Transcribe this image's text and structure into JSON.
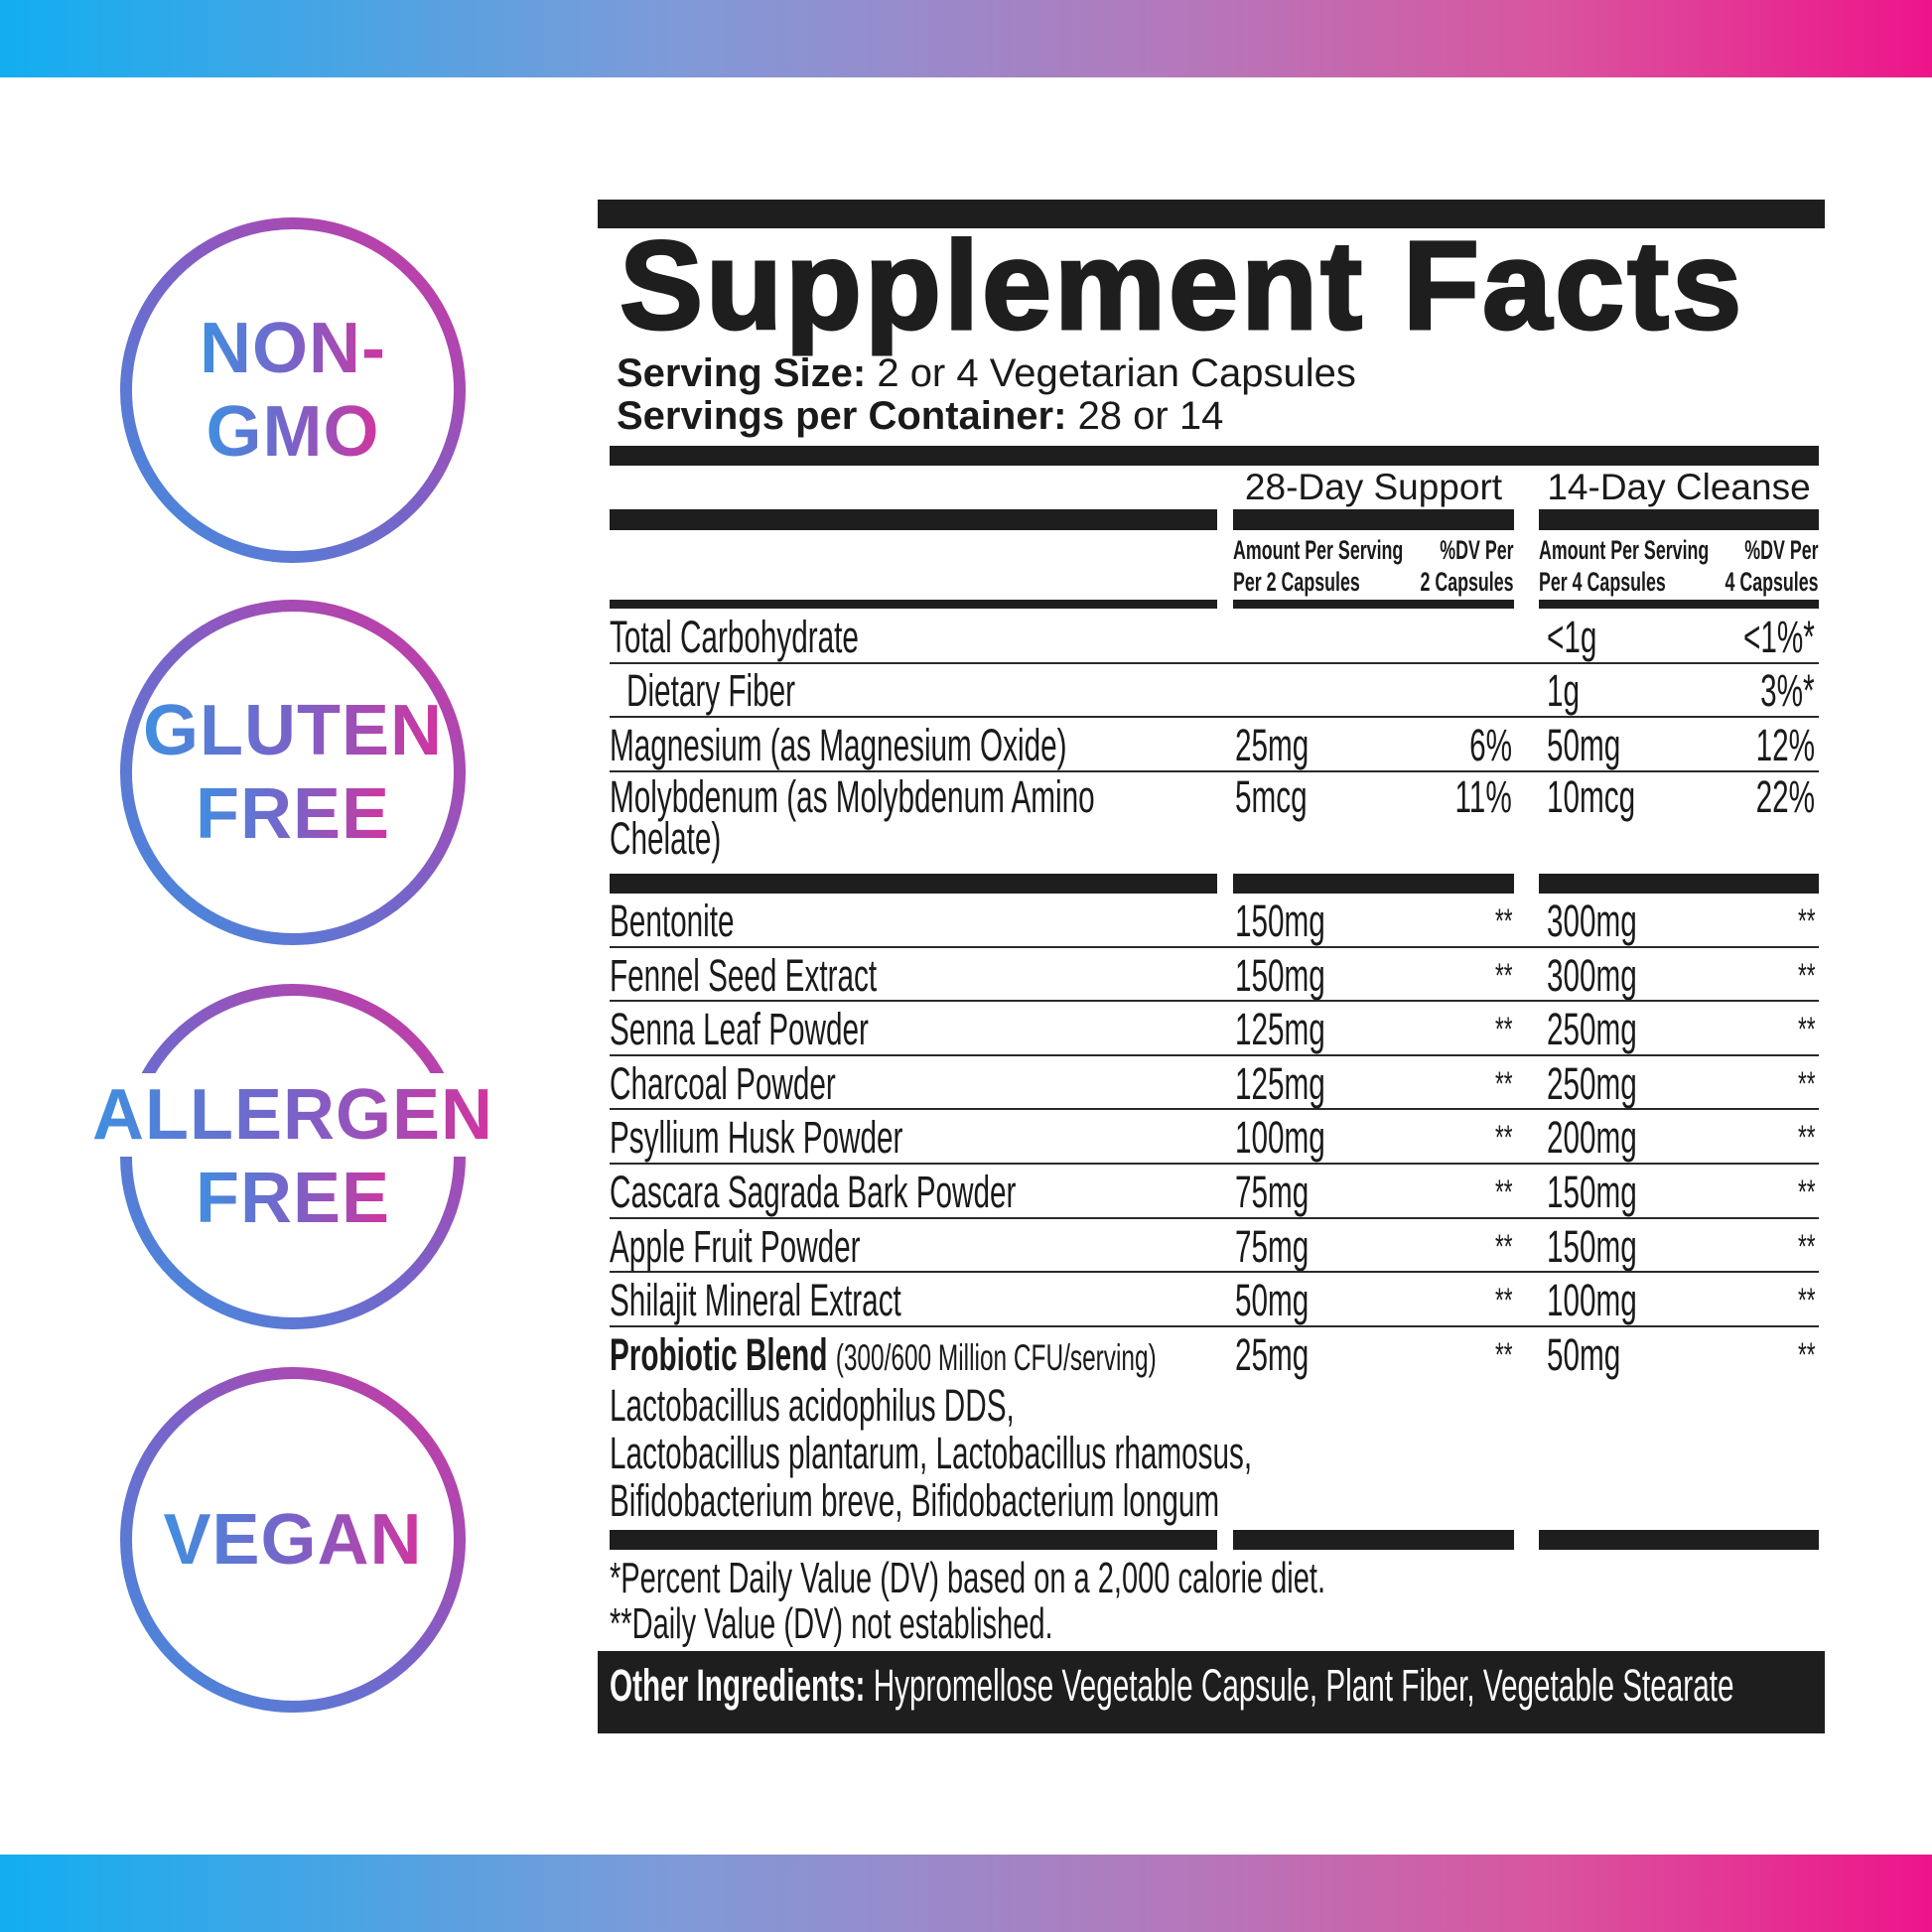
{
  "colors": {
    "gradient_start": "#12aef0",
    "gradient_end": "#ee148a",
    "badge_blue": "#3f8fe0",
    "badge_magenta": "#d2349f",
    "ink": "#1e1e1e"
  },
  "badges": [
    {
      "lines": [
        "NON-",
        "GMO"
      ],
      "icon": "circle-badge"
    },
    {
      "lines": [
        "GLUTEN",
        "FREE"
      ],
      "icon": "circle-badge"
    },
    {
      "lines": [
        "ALLERGEN",
        "FREE"
      ],
      "icon": "circle-badge"
    },
    {
      "lines": [
        "VEGAN"
      ],
      "icon": "circle-badge"
    }
  ],
  "facts": {
    "title": "Supplement Facts",
    "serving_size_label": "Serving Size:",
    "serving_size_value": "2 or 4 Vegetarian Capsules",
    "servings_label": "Servings per Container:",
    "servings_value": "28 or 14",
    "columns": [
      {
        "title": "28-Day Support",
        "amount_header": [
          "Amount Per Serving",
          "Per 2 Capsules"
        ],
        "dv_header": [
          "%DV Per",
          "2 Capsules"
        ]
      },
      {
        "title": "14-Day Cleanse",
        "amount_header": [
          "Amount Per Serving",
          "Per 4 Capsules"
        ],
        "dv_header": [
          "%DV Per",
          "4 Capsules"
        ]
      }
    ],
    "nutrients": [
      {
        "name": "Total Carbohydrate",
        "amt1": "",
        "dv1": "",
        "amt2": "<1g",
        "dv2": "<1%*"
      },
      {
        "name": " Dietary Fiber",
        "amt1": "",
        "dv1": "",
        "amt2": "1g",
        "dv2": "3%*"
      },
      {
        "name": "Magnesium (as Magnesium Oxide)",
        "amt1": "25mg",
        "dv1": "6%",
        "amt2": "50mg",
        "dv2": "12%"
      },
      {
        "name": "Molybdenum (as Molybdenum Amino Chelate)",
        "amt1": "5mcg",
        "dv1": "11%",
        "amt2": "10mcg",
        "dv2": "22%"
      }
    ],
    "ingredients": [
      {
        "name": "Bentonite",
        "amt1": "150mg",
        "dv1": "**",
        "amt2": "300mg",
        "dv2": "**"
      },
      {
        "name": "Fennel Seed Extract",
        "amt1": "150mg",
        "dv1": "**",
        "amt2": "300mg",
        "dv2": "**"
      },
      {
        "name": "Senna Leaf Powder",
        "amt1": "125mg",
        "dv1": "**",
        "amt2": "250mg",
        "dv2": "**"
      },
      {
        "name": "Charcoal Powder",
        "amt1": "125mg",
        "dv1": "**",
        "amt2": "250mg",
        "dv2": "**"
      },
      {
        "name": "Psyllium Husk Powder",
        "amt1": "100mg",
        "dv1": "**",
        "amt2": "200mg",
        "dv2": "**"
      },
      {
        "name": "Cascara Sagrada Bark Powder",
        "amt1": "75mg",
        "dv1": "**",
        "amt2": "150mg",
        "dv2": "**"
      },
      {
        "name": "Apple Fruit Powder",
        "amt1": "75mg",
        "dv1": "**",
        "amt2": "150mg",
        "dv2": "**"
      },
      {
        "name": "Shilajit Mineral Extract",
        "amt1": "50mg",
        "dv1": "**",
        "amt2": "100mg",
        "dv2": "**"
      }
    ],
    "probiotic": {
      "name": "Probiotic Blend",
      "detail": "(300/600 Million CFU/serving)",
      "amt1": "25mg",
      "dv1": "**",
      "amt2": "50mg",
      "dv2": "**",
      "strains": [
        "Lactobacillus acidophilus DDS,",
        "Lactobacillus plantarum, Lactobacillus rhamosus,",
        "Bifidobacterium breve, Bifidobacterium longum"
      ]
    },
    "footnotes": [
      "*Percent Daily Value (DV) based on a 2,000 calorie diet.",
      "**Daily Value (DV) not established."
    ],
    "other_label": "Other Ingredients:",
    "other_value": "Hypromellose Vegetable Capsule, Plant Fiber, Vegetable Stearate"
  }
}
